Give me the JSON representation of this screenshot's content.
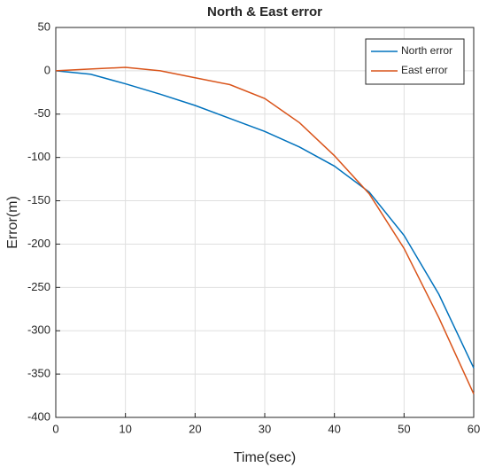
{
  "chart_data": {
    "type": "line",
    "title": "North & East error",
    "x_label": "Time(sec)",
    "y_label": "Error(m)",
    "x": [
      0,
      5,
      10,
      15,
      20,
      25,
      30,
      35,
      40,
      45,
      50,
      55,
      60
    ],
    "series": [
      {
        "name": "North error",
        "color": "#0072bd",
        "values": [
          0,
          -4,
          -15,
          -27,
          -40,
          -55,
          -70,
          -88,
          -110,
          -140,
          -190,
          -258,
          -343
        ]
      },
      {
        "name": "East error",
        "color": "#d95319",
        "values": [
          0,
          2,
          4,
          0,
          -8,
          -16,
          -32,
          -60,
          -98,
          -142,
          -205,
          -285,
          -373
        ]
      }
    ],
    "xlim": [
      0,
      60
    ],
    "xticks": [
      0,
      10,
      20,
      30,
      40,
      50,
      60
    ],
    "ylim": [
      -400,
      50
    ],
    "yticks": [
      -400,
      -350,
      -300,
      -250,
      -200,
      -150,
      -100,
      -50,
      0,
      50
    ],
    "grid": true,
    "legend": "top-right"
  }
}
